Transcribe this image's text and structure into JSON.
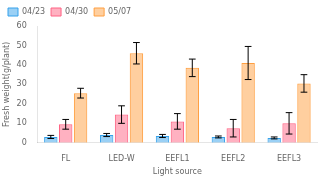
{
  "chart_data": {
    "type": "bar",
    "xlabel": "Light source",
    "ylabel": "Fresh weight(g/plant)",
    "categories": [
      "FL",
      "LED-W",
      "EEFL1",
      "EEFL2",
      "EEFL3"
    ],
    "series": [
      {
        "name": "04/23",
        "values": [
          3.0,
          4.0,
          3.5,
          3.0,
          2.5
        ],
        "errors": [
          0.8,
          0.8,
          0.8,
          0.5,
          0.5
        ]
      },
      {
        "name": "04/30",
        "values": [
          9.5,
          14.5,
          11.0,
          7.5,
          10.0
        ],
        "errors": [
          2.5,
          4.5,
          4.0,
          4.5,
          5.5
        ]
      },
      {
        "name": "05/07",
        "values": [
          25.5,
          46.0,
          38.5,
          41.0,
          30.5
        ],
        "errors": [
          2.5,
          5.5,
          4.5,
          8.5,
          4.5
        ]
      }
    ],
    "ylim": [
      0,
      60
    ],
    "yticks": [
      0,
      10,
      20,
      30,
      40,
      50,
      60
    ],
    "legend": "upper left",
    "grid": false
  }
}
